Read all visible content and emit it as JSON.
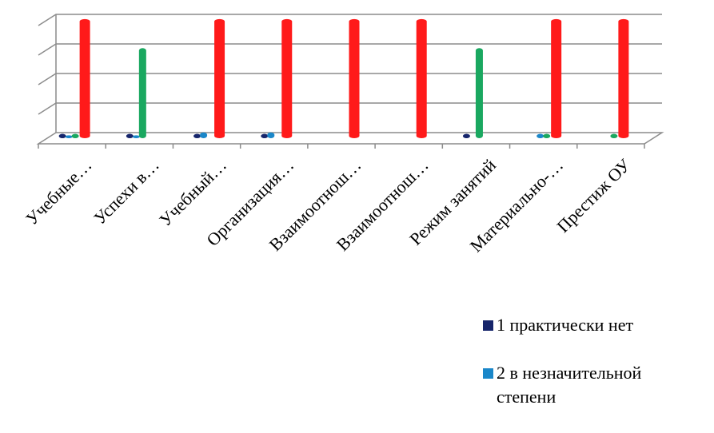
{
  "chart_data": {
    "type": "bar",
    "categories": [
      "Учебные…",
      "Успехи в…",
      "Учебный…",
      "Организация…",
      "Взаимоотнош…",
      "Взаимоотнош…",
      "Режим занятий",
      "Материально-…",
      "Престиж ОУ"
    ],
    "series": [
      {
        "name": "1 практически нет",
        "color": "#16256b",
        "values": [
          0.15,
          0.15,
          0.15,
          0.15,
          0,
          0,
          0.15,
          0,
          0
        ]
      },
      {
        "name": "2 в незначительной степени",
        "color": "#1a87c9",
        "values": [
          0.1,
          0.1,
          0.2,
          0.2,
          0,
          0,
          0,
          0.15,
          0
        ]
      },
      {
        "name": "",
        "color": "#1aa860",
        "values": [
          0.15,
          3.1,
          0,
          0,
          0,
          0,
          3.1,
          0.15,
          0.15
        ]
      },
      {
        "name": "",
        "color": "#ff1a1a",
        "values": [
          4.1,
          0,
          4.1,
          4.1,
          4.1,
          4.1,
          0,
          4.1,
          4.1
        ]
      }
    ],
    "ylim": [
      0,
      4.4
    ],
    "grid": true,
    "legend_position": "bottom-right"
  },
  "legend": {
    "item1": "1 практически нет",
    "item2a": "2 в незначительной",
    "item2b": "степени"
  }
}
